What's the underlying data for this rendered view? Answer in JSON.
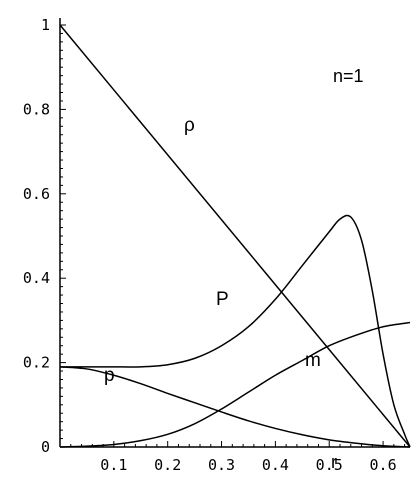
{
  "chart_data": {
    "type": "line",
    "xlabel": "r",
    "ylabel": "",
    "xlim": [
      0,
      0.65
    ],
    "ylim": [
      0,
      1
    ],
    "grid": false,
    "legend": "none",
    "annotation": "n=1",
    "xticks": [
      "0.1",
      "0.2",
      "0.3",
      "0.4",
      "0.5",
      "0.6"
    ],
    "xtick_values": [
      0.1,
      0.2,
      0.3,
      0.4,
      0.5,
      0.6
    ],
    "yticks": [
      "0",
      "0.2",
      "0.4",
      "0.6",
      "0.8",
      "1"
    ],
    "ytick_values": [
      0,
      0.2,
      0.4,
      0.6,
      0.8,
      1
    ],
    "series": [
      {
        "name": "ρ",
        "x": [
          0,
          0.65
        ],
        "y": [
          1,
          0
        ]
      },
      {
        "name": "P",
        "x": [
          0,
          0.05,
          0.1,
          0.15,
          0.2,
          0.25,
          0.3,
          0.35,
          0.4,
          0.45,
          0.5,
          0.52,
          0.54,
          0.56,
          0.58,
          0.6,
          0.62,
          0.64,
          0.65
        ],
        "y": [
          0.19,
          0.19,
          0.19,
          0.19,
          0.195,
          0.21,
          0.24,
          0.285,
          0.35,
          0.43,
          0.51,
          0.54,
          0.545,
          0.49,
          0.37,
          0.22,
          0.1,
          0.03,
          0
        ]
      },
      {
        "name": "m",
        "x": [
          0,
          0.05,
          0.1,
          0.15,
          0.2,
          0.25,
          0.3,
          0.35,
          0.4,
          0.45,
          0.5,
          0.55,
          0.6,
          0.65
        ],
        "y": [
          0,
          0.002,
          0.006,
          0.015,
          0.03,
          0.055,
          0.09,
          0.13,
          0.17,
          0.205,
          0.24,
          0.265,
          0.285,
          0.295
        ]
      },
      {
        "name": "p",
        "x": [
          0,
          0.05,
          0.1,
          0.15,
          0.2,
          0.25,
          0.3,
          0.35,
          0.4,
          0.45,
          0.5,
          0.55,
          0.6,
          0.65
        ],
        "y": [
          0.19,
          0.185,
          0.17,
          0.15,
          0.127,
          0.105,
          0.083,
          0.062,
          0.044,
          0.029,
          0.017,
          0.009,
          0.003,
          0
        ]
      }
    ]
  }
}
